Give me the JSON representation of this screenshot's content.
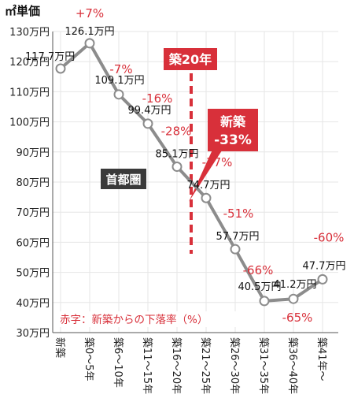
{
  "chart_data": {
    "type": "line",
    "title": "㎡単価",
    "categories": [
      "新築",
      "築0～5年",
      "築6～10年",
      "築11～15年",
      "築16～20年",
      "築21～25年",
      "築26～30年",
      "築31～35年",
      "築36～40年",
      "築41年～"
    ],
    "series": [
      {
        "values": [
          117.7,
          126.1,
          109.1,
          99.4,
          85.1,
          74.7,
          57.7,
          40.5,
          41.2,
          47.7
        ],
        "value_labels": [
          "117.7万円",
          "126.1万円",
          "109.1万円",
          "99.4万円",
          "85.1万円",
          "74.7万円",
          "57.7万円",
          "40.5万円",
          "41.2万円",
          "47.7万円"
        ],
        "change_labels": [
          "",
          "+7%",
          "-7%",
          "-16%",
          "-28%",
          "-37%",
          "-51%",
          "-66%",
          "-65%",
          "-60%"
        ]
      }
    ],
    "ylim": [
      30,
      130
    ],
    "yticks": [
      "30万円",
      "40万円",
      "50万円",
      "60万円",
      "70万円",
      "80万円",
      "90万円",
      "100万円",
      "110万円",
      "120万円",
      "130万円"
    ],
    "grid": "both",
    "colors": {
      "line": "#8c8c8c",
      "accent": "#d8303a",
      "dark_box": "#3a3a3a"
    },
    "annotations": {
      "age_marker": "築20年",
      "new_build_label": "新築",
      "new_build_pct": "-33%",
      "region": "首都圏",
      "note": "赤字：新築からの下落率（%）"
    }
  }
}
